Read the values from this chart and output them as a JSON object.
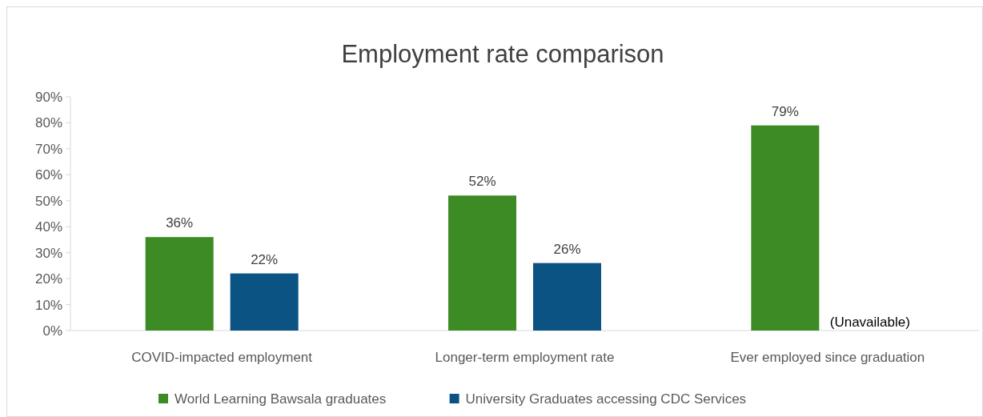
{
  "chart_data": {
    "type": "bar",
    "title": "Employment rate comparison",
    "categories": [
      "COVID-impacted employment",
      "Longer-term employment rate",
      "Ever employed since graduation"
    ],
    "series": [
      {
        "name": "World Learning Bawsala graduates",
        "color": "#3d8b24",
        "values": [
          36,
          52,
          79
        ],
        "value_labels": [
          "36%",
          "52%",
          "79%"
        ]
      },
      {
        "name": "University Graduates accessing CDC Services",
        "color": "#0a5383",
        "values": [
          22,
          26,
          null
        ],
        "value_labels": [
          "22%",
          "26%",
          null
        ]
      }
    ],
    "ylim": [
      0,
      90
    ],
    "yticks": [
      {
        "value": 0,
        "label": "0%"
      },
      {
        "value": 10,
        "label": "10%"
      },
      {
        "value": 20,
        "label": "20%"
      },
      {
        "value": 30,
        "label": "30%"
      },
      {
        "value": 40,
        "label": "40%"
      },
      {
        "value": 50,
        "label": "50%"
      },
      {
        "value": 60,
        "label": "60%"
      },
      {
        "value": 70,
        "label": "70%"
      },
      {
        "value": 80,
        "label": "80%"
      },
      {
        "value": 90,
        "label": "90%"
      }
    ],
    "annotations": [
      "(Unavailable)"
    ],
    "legend": "bottom"
  }
}
